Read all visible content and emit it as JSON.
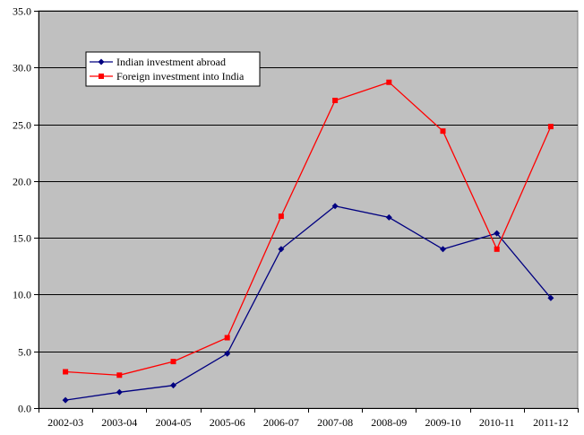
{
  "chart_data": {
    "type": "line",
    "title": "",
    "xlabel": "",
    "ylabel": "",
    "categories": [
      "2002-03",
      "2003-04",
      "2004-05",
      "2005-06",
      "2006-07",
      "2007-08",
      "2008-09",
      "2009-10",
      "2010-11",
      "2011-12"
    ],
    "series": [
      {
        "name": "Indian investment abroad",
        "color": "#000080",
        "marker": "diamond",
        "values": [
          0.7,
          1.4,
          2.0,
          4.8,
          14.0,
          17.8,
          16.8,
          14.0,
          15.4,
          9.7
        ]
      },
      {
        "name": "Foreign investment into India",
        "color": "#ff0000",
        "marker": "square",
        "values": [
          3.2,
          2.9,
          4.1,
          6.2,
          16.9,
          27.1,
          28.7,
          24.4,
          14.0,
          24.8
        ]
      }
    ],
    "ylim": [
      0,
      35
    ],
    "yticks": [
      "0.0",
      "5.0",
      "10.0",
      "15.0",
      "20.0",
      "25.0",
      "30.0",
      "35.0"
    ],
    "grid": "horizontal",
    "legend_position": "top-left",
    "plot_background": "#c0c0c0"
  }
}
